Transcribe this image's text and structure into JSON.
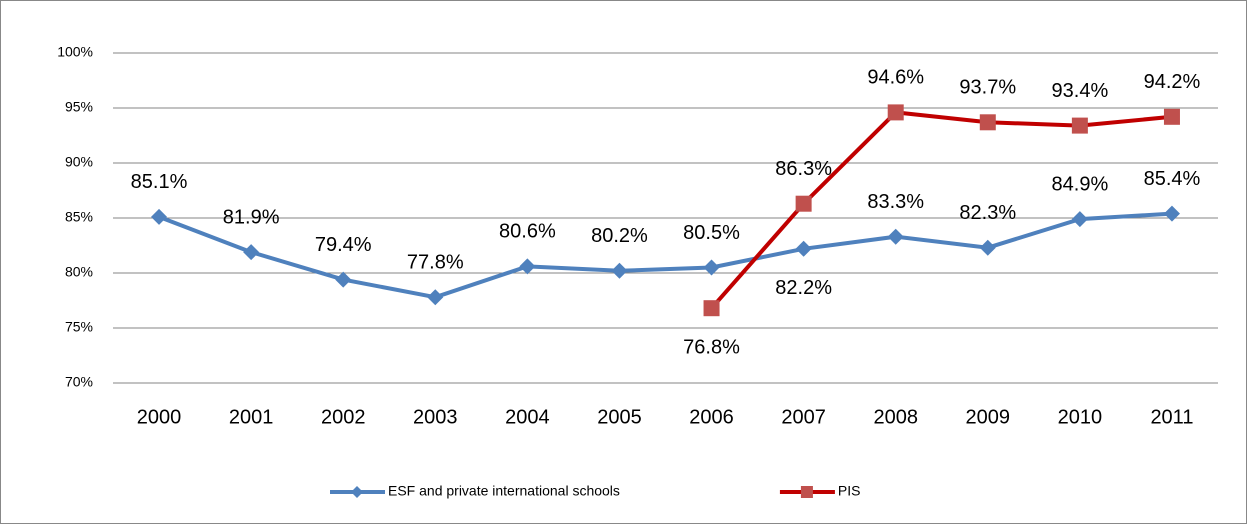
{
  "chart_data": {
    "type": "line",
    "categories": [
      "2000",
      "2001",
      "2002",
      "2003",
      "2004",
      "2005",
      "2006",
      "2007",
      "2008",
      "2009",
      "2010",
      "2011"
    ],
    "series": [
      {
        "name": "ESF and private international schools",
        "color": "#4f81bd",
        "marker": "diamond",
        "marker_color": "#4f81bd",
        "values": [
          85.1,
          81.9,
          79.4,
          77.8,
          80.6,
          80.2,
          80.5,
          82.2,
          83.3,
          82.3,
          84.9,
          85.4
        ],
        "value_labels": [
          "85.1%",
          "81.9%",
          "79.4%",
          "77.8%",
          "80.6%",
          "80.2%",
          "80.5%",
          "82.2%",
          "83.3%",
          "82.3%",
          "84.9%",
          "85.4%"
        ]
      },
      {
        "name": "PIS",
        "color": "#c00000",
        "marker": "square",
        "marker_color": "#c0504d",
        "values": [
          null,
          null,
          null,
          null,
          null,
          null,
          76.8,
          86.3,
          94.6,
          93.7,
          93.4,
          94.2
        ],
        "value_labels": [
          null,
          null,
          null,
          null,
          null,
          null,
          "76.8%",
          "86.3%",
          "94.6%",
          "93.7%",
          "93.4%",
          "94.2%"
        ]
      }
    ],
    "ylim": [
      70,
      100
    ],
    "yticks": [
      {
        "value": 70,
        "label": "70%"
      },
      {
        "value": 75,
        "label": "75%"
      },
      {
        "value": 80,
        "label": "80%"
      },
      {
        "value": 85,
        "label": "85%"
      },
      {
        "value": 90,
        "label": "90%"
      },
      {
        "value": 95,
        "label": "95%"
      },
      {
        "value": 100,
        "label": "100%"
      }
    ],
    "grid": true,
    "legend": "bottom"
  }
}
